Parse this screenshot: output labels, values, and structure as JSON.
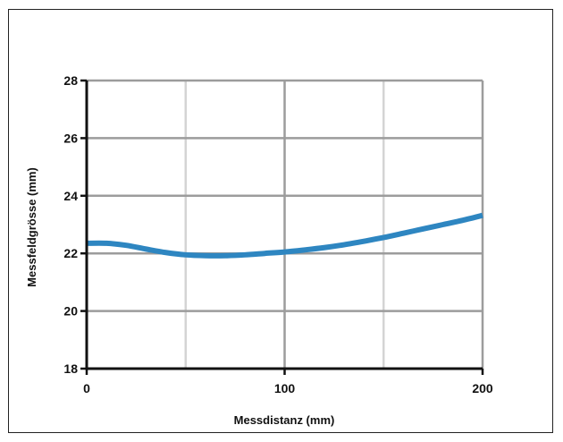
{
  "chart_data": {
    "type": "line",
    "title": "",
    "xlabel": "Messdistanz (mm)",
    "ylabel": "Messfeldgrösse (mm)",
    "xlim": [
      0,
      200
    ],
    "ylim": [
      18,
      28
    ],
    "x_ticks": [
      0,
      100,
      200
    ],
    "y_ticks": [
      18,
      20,
      22,
      24,
      26,
      28
    ],
    "x_minor_gridlines": [
      50,
      150
    ],
    "grid": true,
    "legend": "none",
    "series": [
      {
        "color": "#2e86c1",
        "x": [
          0,
          10,
          20,
          30,
          40,
          50,
          60,
          70,
          80,
          90,
          100,
          110,
          120,
          130,
          140,
          150,
          160,
          170,
          180,
          190,
          200
        ],
        "y": [
          22.35,
          22.35,
          22.28,
          22.15,
          22.03,
          21.95,
          21.92,
          21.92,
          21.95,
          22.0,
          22.05,
          22.12,
          22.2,
          22.3,
          22.42,
          22.55,
          22.7,
          22.85,
          23.0,
          23.15,
          23.32
        ]
      }
    ]
  },
  "colors": {
    "major_grid": "#9c9c9c",
    "minor_grid": "#d4d4d4",
    "axis": "#111111",
    "line": "#2e86c1"
  }
}
